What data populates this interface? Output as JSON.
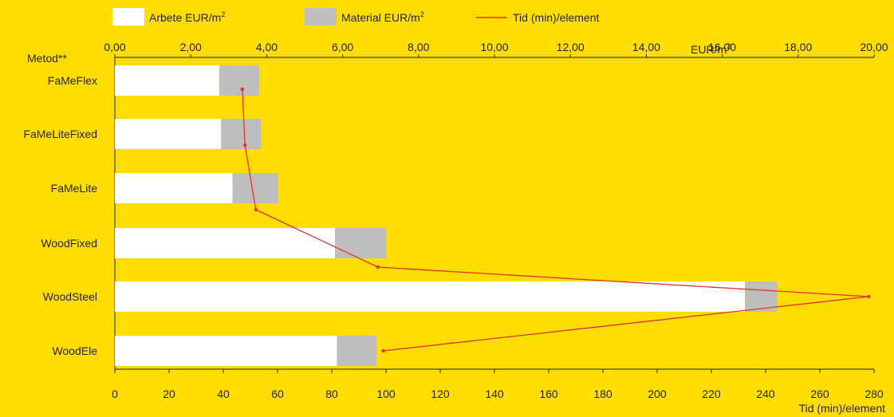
{
  "chart_data": {
    "type": "bar",
    "orientation": "horizontal",
    "stacked": true,
    "category_axis_label": "Metod**",
    "categories": [
      "FaMeFlex",
      "FaMeLiteFixed",
      "FaMeLite",
      "WoodFixed",
      "WoodSteel",
      "WoodEle"
    ],
    "series": [
      {
        "name": "Arbete EUR/m²",
        "values": [
          2.75,
          2.8,
          3.1,
          5.8,
          16.6,
          5.85
        ],
        "color": "#FFFFFF"
      },
      {
        "name": "Material EUR/m²",
        "values": [
          1.05,
          1.05,
          1.2,
          1.35,
          0.85,
          1.05
        ],
        "color": "#BEBEBE"
      }
    ],
    "line_series": {
      "name": "Tid (min)/element",
      "values": [
        47,
        48,
        52,
        97,
        278,
        99
      ],
      "color": "#E8302A"
    },
    "top_axis": {
      "label": "EUR/m",
      "label_sup": "2",
      "range": [
        0,
        20
      ],
      "ticks": [
        "0,00",
        "2,00",
        "4,00",
        "6,00",
        "8,00",
        "10,00",
        "12,00",
        "14,00",
        "16,00",
        "18,00",
        "20,00"
      ]
    },
    "bottom_axis": {
      "label": "Tid (min)/element",
      "range": [
        0,
        280
      ],
      "ticks": [
        "0",
        "20",
        "40",
        "60",
        "80",
        "100",
        "120",
        "140",
        "160",
        "180",
        "200",
        "220",
        "240",
        "260",
        "280"
      ]
    },
    "legend": {
      "placement": "top",
      "items": [
        {
          "label": "Arbete EUR/m",
          "sup": "2",
          "kind": "box",
          "color": "#FFFFFF"
        },
        {
          "label": "Material EUR/m",
          "sup": "2",
          "kind": "box",
          "color": "#BEBEBE"
        },
        {
          "label": "Tid (min)/element",
          "kind": "line",
          "color": "#E8302A"
        }
      ]
    },
    "grid": false
  }
}
